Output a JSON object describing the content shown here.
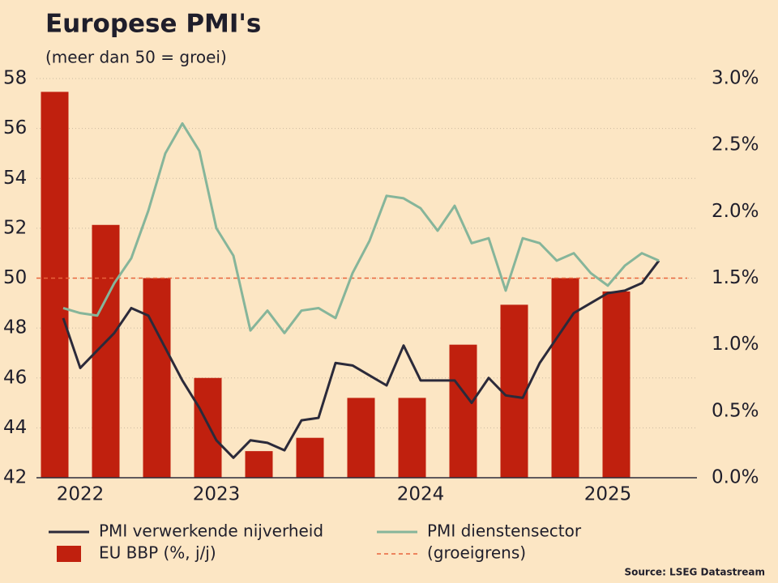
{
  "chart_data": {
    "type": "combo",
    "title": "Europese PMI's",
    "subtitle": "(meer dan 50 = groei)",
    "source": "Source: LSEG Datastream",
    "categories": [
      null,
      "2022",
      null,
      null,
      null,
      null,
      null,
      null,
      null,
      "2023",
      null,
      null,
      null,
      null,
      null,
      null,
      null,
      null,
      null,
      null,
      null,
      "2024",
      null,
      null,
      null,
      null,
      null,
      null,
      null,
      null,
      null,
      null,
      "2025",
      null,
      null,
      null
    ],
    "series": [
      {
        "name": "PMI verwerkende nijverheid",
        "type": "line",
        "color": "#2b2a3a",
        "values": [
          48.4,
          46.4,
          47.1,
          47.8,
          48.8,
          48.5,
          47.2,
          45.9,
          44.8,
          43.5,
          42.8,
          43.5,
          43.4,
          43.1,
          44.3,
          44.4,
          46.6,
          46.5,
          46.1,
          45.7,
          47.3,
          45.9,
          45.9,
          45.9,
          45.0,
          46.0,
          45.3,
          45.2,
          46.6,
          47.6,
          48.6,
          49.0,
          49.4,
          49.5,
          49.8,
          50.7
        ]
      },
      {
        "name": "PMI dienstensector",
        "type": "line",
        "color": "#86b59a",
        "values": [
          48.8,
          48.6,
          48.5,
          49.8,
          50.8,
          52.7,
          55.0,
          56.2,
          55.1,
          52.0,
          50.9,
          47.9,
          48.7,
          47.8,
          48.7,
          48.8,
          48.4,
          50.2,
          51.5,
          53.3,
          53.2,
          52.8,
          51.9,
          52.9,
          51.4,
          51.6,
          49.5,
          51.6,
          51.4,
          50.7,
          51.0,
          50.2,
          49.7,
          50.5,
          51.0,
          50.7
        ]
      },
      {
        "name": "EU BBP (%, j/j)",
        "type": "bar",
        "axis": "y2",
        "color": "#c0200e",
        "values": [
          2.9,
          null,
          null,
          1.9,
          null,
          null,
          1.5,
          null,
          null,
          0.75,
          null,
          null,
          0.2,
          null,
          null,
          0.3,
          null,
          null,
          0.6,
          null,
          null,
          0.6,
          null,
          null,
          1.0,
          null,
          null,
          1.3,
          null,
          null,
          1.5,
          null,
          null,
          1.4,
          null,
          null
        ]
      }
    ],
    "reference_line": {
      "name": "(groeigrens)",
      "value": 50,
      "color": "#e8643c"
    },
    "ylim": [
      42,
      58
    ],
    "yticks": [
      42,
      44,
      46,
      48,
      50,
      52,
      54,
      56,
      58
    ],
    "y2lim": [
      0,
      3
    ],
    "y2ticks": [
      {
        "value": 0,
        "label": "0.0%"
      },
      {
        "value": 0.5,
        "label": "0.5%"
      },
      {
        "value": 1,
        "label": "1.0%"
      },
      {
        "value": 1.5,
        "label": "1.5%"
      },
      {
        "value": 2,
        "label": "2.0%"
      },
      {
        "value": 2.5,
        "label": "2.5%"
      },
      {
        "value": 3,
        "label": "3.0%"
      }
    ],
    "grid": true
  }
}
